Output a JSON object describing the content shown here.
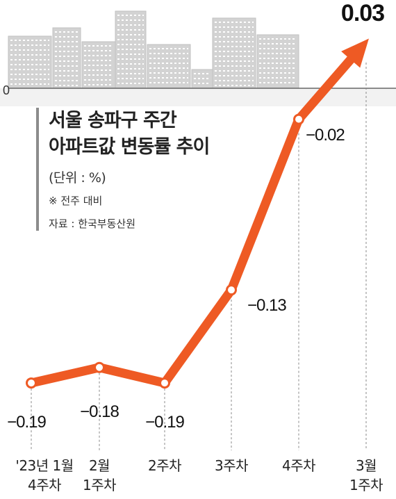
{
  "chart_data": {
    "type": "line",
    "title": "서울 송파구 주간\n아파트값 변동률 추이",
    "title_lines": [
      "서울 송파구 주간",
      "아파트값 변동률 추이"
    ],
    "unit_label": "(단위 : %)",
    "note": "※ 전주 대비",
    "source": "자료 : 한국부동산원",
    "zero_label": "0",
    "categories": [
      [
        "'23년 1월",
        "4주차"
      ],
      [
        "2월",
        "1주차"
      ],
      [
        "2주차"
      ],
      [
        "3주차"
      ],
      [
        "4주차"
      ],
      [
        "3월",
        "1주차"
      ]
    ],
    "values": [
      -0.19,
      -0.18,
      -0.19,
      -0.13,
      -0.02,
      0.03
    ],
    "value_labels": [
      "−0.19",
      "−0.18",
      "−0.19",
      "−0.13",
      "−0.02",
      "0.03"
    ],
    "ylim": [
      -0.2,
      0.03
    ],
    "colors": {
      "line": "#ee5a24",
      "axis": "#666666",
      "buildings": "#d3d3d3"
    }
  }
}
